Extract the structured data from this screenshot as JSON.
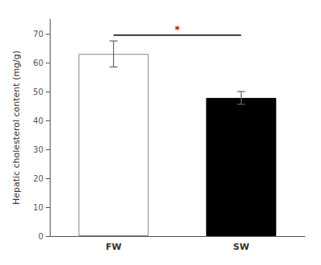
{
  "chart_data": {
    "type": "bar",
    "categories": [
      "FW",
      "SW"
    ],
    "values": [
      63.0,
      47.8
    ],
    "errors": [
      4.5,
      2.2
    ],
    "colors": [
      "#ffffff",
      "#000000"
    ],
    "edge_colors": [
      "#888888",
      "#000000"
    ],
    "error_color": "#666666",
    "ylabel": "Hepatic cholesterol content (mg/g)",
    "ylim": [
      0,
      75
    ],
    "yticks": [
      0,
      10,
      20,
      30,
      40,
      50,
      60,
      70
    ],
    "grid": false,
    "significance": {
      "from": "FW",
      "to": "SW",
      "y": 69.5,
      "text": "*",
      "color": "#cc0000"
    }
  }
}
